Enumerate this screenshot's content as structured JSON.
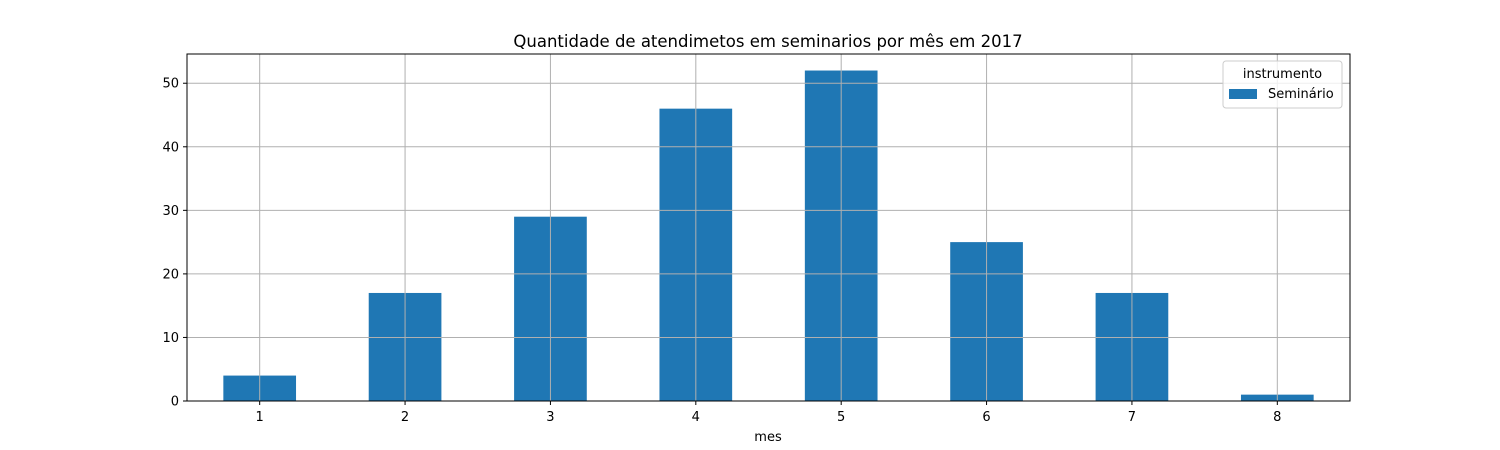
{
  "chart_data": {
    "type": "bar",
    "title": "Quantidade de atendimetos em seminarios por mês em 2017",
    "xlabel": "mes",
    "ylabel": "",
    "categories": [
      "1",
      "2",
      "3",
      "4",
      "5",
      "6",
      "7",
      "8"
    ],
    "series": [
      {
        "name": "Seminário",
        "color": "#1f77b4",
        "values": [
          4,
          17,
          29,
          46,
          52,
          25,
          17,
          1
        ]
      }
    ],
    "ylim": [
      0,
      54.6
    ],
    "yticks": [
      0,
      10,
      20,
      30,
      40,
      50
    ],
    "grid": true,
    "legend": {
      "title": "instrumento",
      "placement": "top-right"
    }
  }
}
